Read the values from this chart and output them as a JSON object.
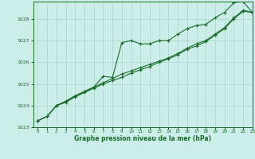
{
  "title": "Graphe pression niveau de la mer (hPa)",
  "bg_color": "#cceee8",
  "grid_color": "#aad8cc",
  "line_color": "#1a6b2a",
  "xlim": [
    -0.5,
    23
  ],
  "ylim": [
    1023,
    1028.8
  ],
  "xticks": [
    0,
    1,
    2,
    3,
    4,
    5,
    6,
    7,
    8,
    9,
    10,
    11,
    12,
    13,
    14,
    15,
    16,
    17,
    18,
    19,
    20,
    21,
    22,
    23
  ],
  "yticks": [
    1023,
    1024,
    1025,
    1026,
    1027,
    1028
  ],
  "line1_x": [
    0,
    1,
    2,
    3,
    4,
    5,
    6,
    7,
    8,
    9,
    10,
    11,
    12,
    13,
    14,
    15,
    16,
    17,
    18,
    19,
    20,
    21,
    22,
    23
  ],
  "line1_y": [
    1023.3,
    1023.5,
    1024.0,
    1024.2,
    1024.45,
    1024.65,
    1024.85,
    1025.35,
    1025.3,
    1026.9,
    1027.0,
    1026.85,
    1026.85,
    1027.0,
    1027.0,
    1027.3,
    1027.55,
    1027.7,
    1027.75,
    1028.05,
    1028.3,
    1028.75,
    1028.8,
    1028.3
  ],
  "line2_x": [
    0,
    1,
    2,
    3,
    4,
    5,
    6,
    7,
    8,
    9,
    10,
    11,
    12,
    13,
    14,
    15,
    16,
    17,
    18,
    19,
    20,
    21,
    22,
    23
  ],
  "line2_y": [
    1023.3,
    1023.5,
    1024.0,
    1024.2,
    1024.45,
    1024.65,
    1024.85,
    1025.05,
    1025.25,
    1025.45,
    1025.6,
    1025.75,
    1025.9,
    1026.05,
    1026.2,
    1026.4,
    1026.65,
    1026.85,
    1027.0,
    1027.3,
    1027.6,
    1028.05,
    1028.4,
    1028.3
  ],
  "line3_x": [
    0,
    1,
    2,
    3,
    4,
    5,
    6,
    7,
    8,
    9,
    10,
    11,
    12,
    13,
    14,
    15,
    16,
    17,
    18,
    19,
    20,
    21,
    22,
    23
  ],
  "line3_y": [
    1023.3,
    1023.5,
    1024.0,
    1024.15,
    1024.4,
    1024.6,
    1024.8,
    1025.0,
    1025.15,
    1025.3,
    1025.5,
    1025.65,
    1025.8,
    1026.0,
    1026.15,
    1026.35,
    1026.6,
    1026.75,
    1026.95,
    1027.25,
    1027.55,
    1028.0,
    1028.35,
    1028.3
  ]
}
